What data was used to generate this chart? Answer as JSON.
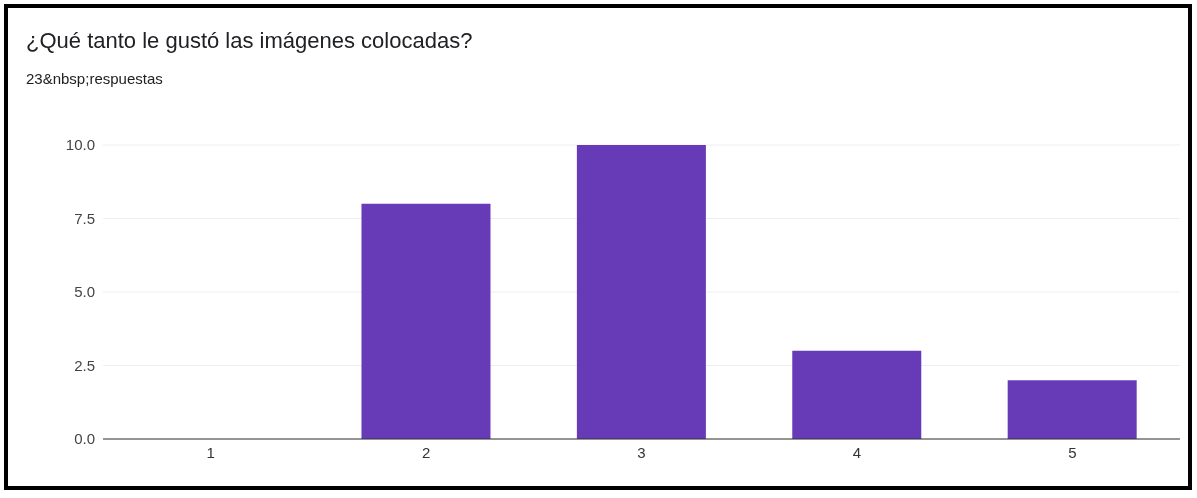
{
  "chart_data": {
    "type": "bar",
    "title": "¿Qué tanto le gustó las imágenes colocadas?",
    "subtitle": "23&nbsp;respuestas",
    "categories": [
      "1",
      "2",
      "3",
      "4",
      "5"
    ],
    "values": [
      0,
      8,
      10,
      3,
      2
    ],
    "color": "#673ab7",
    "ylim": [
      0,
      10
    ],
    "yticks": [
      {
        "value": 0,
        "label": "0.0"
      },
      {
        "value": 2.5,
        "label": "2.5"
      },
      {
        "value": 5,
        "label": "5.0"
      },
      {
        "value": 7.5,
        "label": "7.5"
      },
      {
        "value": 10,
        "label": "10.0"
      }
    ],
    "grid": "y",
    "legend": false
  }
}
